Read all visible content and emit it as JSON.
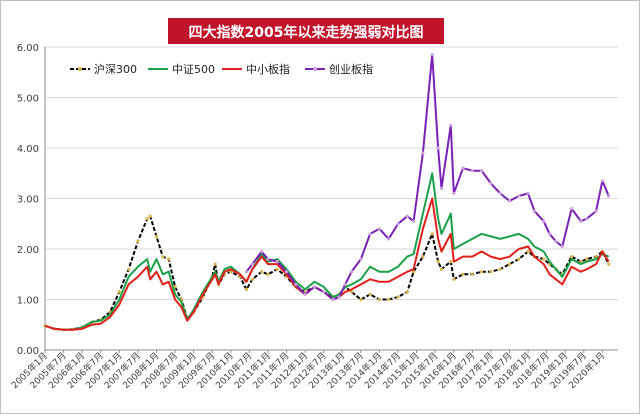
{
  "chart_data": {
    "type": "line",
    "title": "四大指数2005年以来走势强弱对比图",
    "title_bg_color": "#c0142a",
    "title_text_color": "#ffffff",
    "xlabel": "",
    "ylabel": "",
    "ylim": [
      0,
      6
    ],
    "yticks": [
      "0.00",
      "1.00",
      "2.00",
      "3.00",
      "4.00",
      "5.00",
      "6.00"
    ],
    "x_tick_labels": [
      "2005年1月",
      "2005年7月",
      "2006年1月",
      "2006年7月",
      "2007年1月",
      "2007年7月",
      "2008年1月",
      "2008年7月",
      "2009年1月",
      "2009年7月",
      "2010年1月",
      "2010年7月",
      "2011年1月",
      "2011年7月",
      "2012年1月",
      "2012年7月",
      "2013年1月",
      "2013年7月",
      "2014年1月",
      "2014年7月",
      "2015年1月",
      "2015年7月",
      "2016年1月",
      "2016年7月",
      "2017年1月",
      "2017年7月",
      "2018年1月",
      "2018年7月",
      "2019年1月",
      "2019年7月",
      "2020年1月"
    ],
    "x_range": [
      2005.0,
      2020.42
    ],
    "grid": true,
    "legend_position": "top-left",
    "series": [
      {
        "name": "沪深300",
        "color": "#000000",
        "marker_color": "#d9b24a",
        "dashed": true,
        "points": [
          [
            2005.0,
            0.48
          ],
          [
            2005.25,
            0.42
          ],
          [
            2005.5,
            0.4
          ],
          [
            2005.75,
            0.41
          ],
          [
            2006.0,
            0.45
          ],
          [
            2006.25,
            0.55
          ],
          [
            2006.5,
            0.6
          ],
          [
            2006.75,
            0.75
          ],
          [
            2007.0,
            1.15
          ],
          [
            2007.25,
            1.6
          ],
          [
            2007.5,
            2.15
          ],
          [
            2007.75,
            2.6
          ],
          [
            2007.83,
            2.65
          ],
          [
            2008.0,
            2.25
          ],
          [
            2008.17,
            1.85
          ],
          [
            2008.33,
            1.8
          ],
          [
            2008.5,
            1.25
          ],
          [
            2008.67,
            1.0
          ],
          [
            2008.83,
            0.62
          ],
          [
            2009.0,
            0.75
          ],
          [
            2009.25,
            1.05
          ],
          [
            2009.5,
            1.45
          ],
          [
            2009.58,
            1.7
          ],
          [
            2009.67,
            1.3
          ],
          [
            2009.83,
            1.5
          ],
          [
            2010.0,
            1.55
          ],
          [
            2010.25,
            1.45
          ],
          [
            2010.42,
            1.2
          ],
          [
            2010.58,
            1.4
          ],
          [
            2010.83,
            1.55
          ],
          [
            2011.0,
            1.5
          ],
          [
            2011.25,
            1.6
          ],
          [
            2011.5,
            1.45
          ],
          [
            2011.75,
            1.25
          ],
          [
            2012.0,
            1.15
          ],
          [
            2012.25,
            1.25
          ],
          [
            2012.5,
            1.15
          ],
          [
            2012.75,
            1.05
          ],
          [
            2012.92,
            1.1
          ],
          [
            2013.08,
            1.25
          ],
          [
            2013.25,
            1.15
          ],
          [
            2013.5,
            1.0
          ],
          [
            2013.75,
            1.1
          ],
          [
            2014.0,
            1.0
          ],
          [
            2014.25,
            1.0
          ],
          [
            2014.5,
            1.05
          ],
          [
            2014.75,
            1.15
          ],
          [
            2014.92,
            1.55
          ],
          [
            2015.17,
            1.85
          ],
          [
            2015.42,
            2.3
          ],
          [
            2015.58,
            1.75
          ],
          [
            2015.67,
            1.6
          ],
          [
            2015.92,
            1.75
          ],
          [
            2016.0,
            1.4
          ],
          [
            2016.25,
            1.5
          ],
          [
            2016.5,
            1.5
          ],
          [
            2016.75,
            1.55
          ],
          [
            2017.0,
            1.55
          ],
          [
            2017.25,
            1.6
          ],
          [
            2017.5,
            1.7
          ],
          [
            2017.75,
            1.8
          ],
          [
            2018.0,
            1.95
          ],
          [
            2018.17,
            1.85
          ],
          [
            2018.42,
            1.8
          ],
          [
            2018.58,
            1.7
          ],
          [
            2018.75,
            1.6
          ],
          [
            2018.92,
            1.5
          ],
          [
            2019.17,
            1.85
          ],
          [
            2019.42,
            1.75
          ],
          [
            2019.58,
            1.8
          ],
          [
            2019.83,
            1.85
          ],
          [
            2020.0,
            1.95
          ],
          [
            2020.17,
            1.7
          ]
        ]
      },
      {
        "name": "中证500",
        "color": "#1aa14a",
        "dashed": false,
        "points": [
          [
            2005.0,
            0.48
          ],
          [
            2005.25,
            0.42
          ],
          [
            2005.5,
            0.4
          ],
          [
            2005.75,
            0.4
          ],
          [
            2006.0,
            0.45
          ],
          [
            2006.25,
            0.55
          ],
          [
            2006.5,
            0.58
          ],
          [
            2006.75,
            0.7
          ],
          [
            2007.0,
            1.0
          ],
          [
            2007.25,
            1.45
          ],
          [
            2007.5,
            1.65
          ],
          [
            2007.75,
            1.8
          ],
          [
            2007.83,
            1.55
          ],
          [
            2008.0,
            1.8
          ],
          [
            2008.17,
            1.5
          ],
          [
            2008.33,
            1.55
          ],
          [
            2008.5,
            1.1
          ],
          [
            2008.67,
            0.95
          ],
          [
            2008.83,
            0.6
          ],
          [
            2009.0,
            0.8
          ],
          [
            2009.25,
            1.15
          ],
          [
            2009.5,
            1.45
          ],
          [
            2009.58,
            1.55
          ],
          [
            2009.67,
            1.35
          ],
          [
            2009.83,
            1.6
          ],
          [
            2010.0,
            1.65
          ],
          [
            2010.25,
            1.5
          ],
          [
            2010.42,
            1.35
          ],
          [
            2010.58,
            1.6
          ],
          [
            2010.83,
            1.9
          ],
          [
            2011.0,
            1.75
          ],
          [
            2011.25,
            1.8
          ],
          [
            2011.5,
            1.6
          ],
          [
            2011.75,
            1.35
          ],
          [
            2012.0,
            1.2
          ],
          [
            2012.25,
            1.35
          ],
          [
            2012.5,
            1.25
          ],
          [
            2012.75,
            1.05
          ],
          [
            2012.92,
            1.1
          ],
          [
            2013.08,
            1.25
          ],
          [
            2013.25,
            1.3
          ],
          [
            2013.5,
            1.4
          ],
          [
            2013.75,
            1.65
          ],
          [
            2014.0,
            1.55
          ],
          [
            2014.25,
            1.55
          ],
          [
            2014.5,
            1.65
          ],
          [
            2014.75,
            1.85
          ],
          [
            2014.92,
            1.9
          ],
          [
            2015.17,
            2.7
          ],
          [
            2015.42,
            3.5
          ],
          [
            2015.58,
            2.6
          ],
          [
            2015.67,
            2.3
          ],
          [
            2015.92,
            2.7
          ],
          [
            2016.0,
            2.0
          ],
          [
            2016.25,
            2.1
          ],
          [
            2016.5,
            2.2
          ],
          [
            2016.75,
            2.3
          ],
          [
            2017.0,
            2.25
          ],
          [
            2017.25,
            2.2
          ],
          [
            2017.5,
            2.25
          ],
          [
            2017.75,
            2.3
          ],
          [
            2018.0,
            2.2
          ],
          [
            2018.17,
            2.05
          ],
          [
            2018.42,
            1.95
          ],
          [
            2018.58,
            1.75
          ],
          [
            2018.75,
            1.6
          ],
          [
            2018.92,
            1.45
          ],
          [
            2019.17,
            1.8
          ],
          [
            2019.42,
            1.7
          ],
          [
            2019.58,
            1.75
          ],
          [
            2019.83,
            1.8
          ],
          [
            2020.0,
            1.9
          ],
          [
            2020.17,
            1.85
          ]
        ]
      },
      {
        "name": "中小板指",
        "color": "#e0201b",
        "dashed": false,
        "points": [
          [
            2005.0,
            0.48
          ],
          [
            2005.25,
            0.42
          ],
          [
            2005.5,
            0.4
          ],
          [
            2005.75,
            0.4
          ],
          [
            2006.0,
            0.42
          ],
          [
            2006.25,
            0.5
          ],
          [
            2006.5,
            0.52
          ],
          [
            2006.75,
            0.65
          ],
          [
            2007.0,
            0.9
          ],
          [
            2007.25,
            1.3
          ],
          [
            2007.5,
            1.45
          ],
          [
            2007.75,
            1.65
          ],
          [
            2007.83,
            1.4
          ],
          [
            2008.0,
            1.55
          ],
          [
            2008.17,
            1.3
          ],
          [
            2008.33,
            1.35
          ],
          [
            2008.5,
            1.0
          ],
          [
            2008.67,
            0.85
          ],
          [
            2008.83,
            0.58
          ],
          [
            2009.0,
            0.75
          ],
          [
            2009.25,
            1.1
          ],
          [
            2009.5,
            1.4
          ],
          [
            2009.58,
            1.5
          ],
          [
            2009.67,
            1.3
          ],
          [
            2009.83,
            1.55
          ],
          [
            2010.0,
            1.6
          ],
          [
            2010.25,
            1.5
          ],
          [
            2010.42,
            1.35
          ],
          [
            2010.58,
            1.6
          ],
          [
            2010.83,
            1.85
          ],
          [
            2011.0,
            1.7
          ],
          [
            2011.25,
            1.7
          ],
          [
            2011.5,
            1.5
          ],
          [
            2011.75,
            1.25
          ],
          [
            2012.0,
            1.1
          ],
          [
            2012.25,
            1.25
          ],
          [
            2012.5,
            1.15
          ],
          [
            2012.75,
            1.0
          ],
          [
            2012.92,
            1.05
          ],
          [
            2013.08,
            1.15
          ],
          [
            2013.25,
            1.2
          ],
          [
            2013.5,
            1.3
          ],
          [
            2013.75,
            1.4
          ],
          [
            2014.0,
            1.35
          ],
          [
            2014.25,
            1.35
          ],
          [
            2014.5,
            1.45
          ],
          [
            2014.75,
            1.55
          ],
          [
            2014.92,
            1.6
          ],
          [
            2015.17,
            2.4
          ],
          [
            2015.42,
            3.0
          ],
          [
            2015.58,
            2.2
          ],
          [
            2015.67,
            1.95
          ],
          [
            2015.92,
            2.3
          ],
          [
            2016.0,
            1.75
          ],
          [
            2016.25,
            1.85
          ],
          [
            2016.5,
            1.85
          ],
          [
            2016.75,
            1.95
          ],
          [
            2017.0,
            1.85
          ],
          [
            2017.25,
            1.8
          ],
          [
            2017.5,
            1.85
          ],
          [
            2017.75,
            2.0
          ],
          [
            2018.0,
            2.05
          ],
          [
            2018.17,
            1.85
          ],
          [
            2018.42,
            1.7
          ],
          [
            2018.58,
            1.5
          ],
          [
            2018.75,
            1.4
          ],
          [
            2018.92,
            1.3
          ],
          [
            2019.17,
            1.65
          ],
          [
            2019.42,
            1.55
          ],
          [
            2019.58,
            1.6
          ],
          [
            2019.83,
            1.7
          ],
          [
            2020.0,
            1.95
          ],
          [
            2020.17,
            1.75
          ]
        ]
      },
      {
        "name": "创业板指",
        "color": "#7a22b5",
        "marker_color": "#c9a0dc",
        "dashed": false,
        "points": [
          [
            2010.42,
            1.55
          ],
          [
            2010.58,
            1.7
          ],
          [
            2010.83,
            1.95
          ],
          [
            2011.0,
            1.8
          ],
          [
            2011.25,
            1.75
          ],
          [
            2011.5,
            1.55
          ],
          [
            2011.75,
            1.3
          ],
          [
            2012.0,
            1.1
          ],
          [
            2012.25,
            1.25
          ],
          [
            2012.5,
            1.15
          ],
          [
            2012.75,
            1.0
          ],
          [
            2012.92,
            1.05
          ],
          [
            2013.08,
            1.3
          ],
          [
            2013.25,
            1.55
          ],
          [
            2013.5,
            1.8
          ],
          [
            2013.75,
            2.3
          ],
          [
            2014.0,
            2.4
          ],
          [
            2014.25,
            2.2
          ],
          [
            2014.5,
            2.5
          ],
          [
            2014.75,
            2.65
          ],
          [
            2014.92,
            2.55
          ],
          [
            2015.17,
            3.9
          ],
          [
            2015.42,
            5.85
          ],
          [
            2015.58,
            4.0
          ],
          [
            2015.67,
            3.2
          ],
          [
            2015.92,
            4.45
          ],
          [
            2016.0,
            3.1
          ],
          [
            2016.25,
            3.6
          ],
          [
            2016.5,
            3.55
          ],
          [
            2016.75,
            3.55
          ],
          [
            2017.0,
            3.3
          ],
          [
            2017.25,
            3.1
          ],
          [
            2017.5,
            2.95
          ],
          [
            2017.75,
            3.05
          ],
          [
            2018.0,
            3.1
          ],
          [
            2018.17,
            2.75
          ],
          [
            2018.42,
            2.55
          ],
          [
            2018.58,
            2.3
          ],
          [
            2018.75,
            2.15
          ],
          [
            2018.92,
            2.05
          ],
          [
            2019.17,
            2.8
          ],
          [
            2019.42,
            2.55
          ],
          [
            2019.58,
            2.6
          ],
          [
            2019.83,
            2.75
          ],
          [
            2020.0,
            3.35
          ],
          [
            2020.17,
            3.05
          ]
        ]
      }
    ]
  }
}
